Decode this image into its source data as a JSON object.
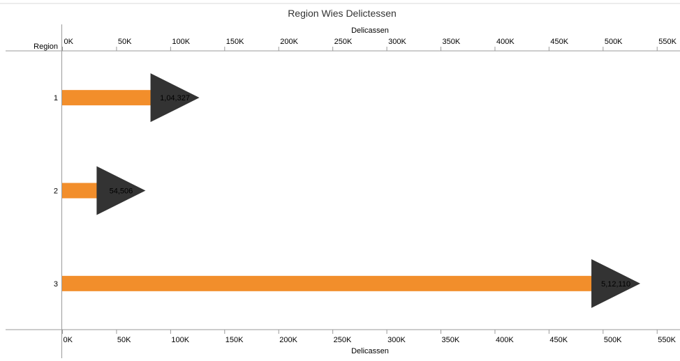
{
  "chart_data": {
    "type": "bar",
    "orientation": "horizontal",
    "title": "Region Wies Delictessen",
    "xlabel": "Delicassen",
    "ylabel": "Region",
    "categories": [
      "1",
      "2",
      "3"
    ],
    "values": [
      104327,
      54506,
      512110
    ],
    "value_labels": [
      "1,04,327",
      "54,506",
      "5,12,110"
    ],
    "x_ticks": [
      0,
      50000,
      100000,
      150000,
      200000,
      250000,
      300000,
      350000,
      400000,
      450000,
      500000,
      550000
    ],
    "x_tick_labels": [
      "0K",
      "50K",
      "100K",
      "150K",
      "200K",
      "250K",
      "300K",
      "350K",
      "400K",
      "450K",
      "500K",
      "550K"
    ],
    "xlim": [
      0,
      565000
    ],
    "grid": false,
    "bar_color": "#F28E2B",
    "marker": "right-pointing triangle at bar end",
    "marker_color": "#333333",
    "x_axis_position": "top and bottom"
  }
}
